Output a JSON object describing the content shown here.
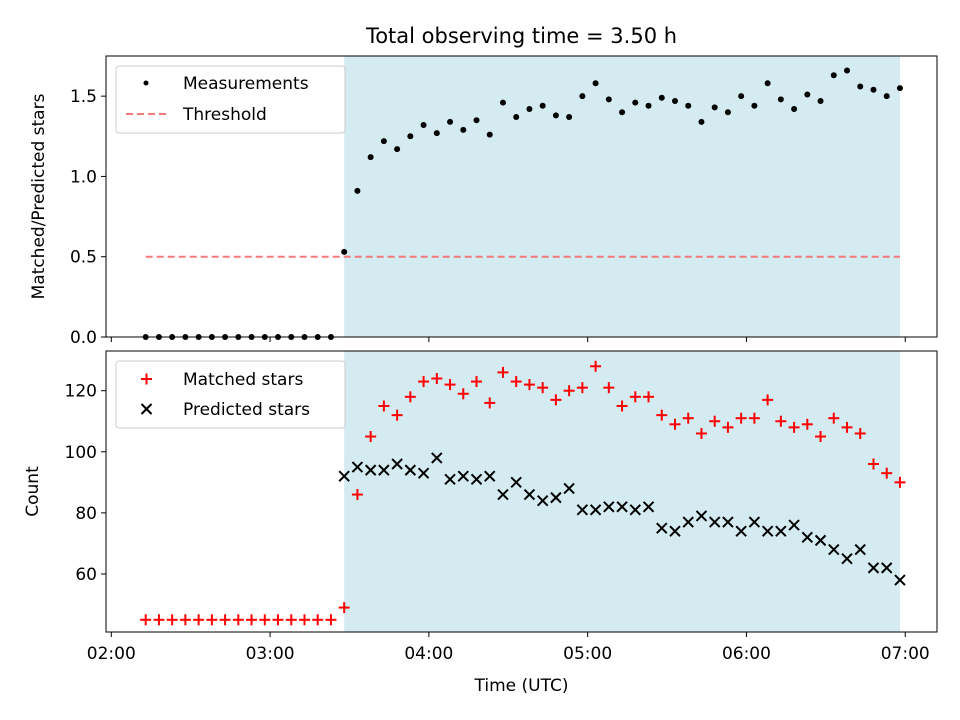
{
  "chart_data": [
    {
      "type": "scatter",
      "title": "Total observing time = 3.50 h",
      "ylabel": "Matched/Predicted stars",
      "xlim": [
        "01:58",
        "07:12"
      ],
      "ylim": [
        0,
        1.75
      ],
      "yticks": [
        0.0,
        0.5,
        1.0,
        1.5
      ],
      "ytick_labels": [
        "0.0",
        "0.5",
        "1.0",
        "1.5"
      ],
      "shaded_region": {
        "x_start": "03:28",
        "x_end": "06:58",
        "color": "#d4ebf1"
      },
      "legend": {
        "position": "top-left",
        "entries": [
          "Measurements",
          "Threshold"
        ]
      },
      "series": [
        {
          "name": "Measurements",
          "marker": "dot",
          "color": "#000000",
          "x": [
            "02:13",
            "02:18",
            "02:23",
            "02:28",
            "02:33",
            "02:38",
            "02:43",
            "02:48",
            "02:53",
            "02:58",
            "03:03",
            "03:08",
            "03:13",
            "03:18",
            "03:23",
            "03:28",
            "03:33",
            "03:38",
            "03:43",
            "03:48",
            "03:53",
            "03:58",
            "04:03",
            "04:08",
            "04:13",
            "04:18",
            "04:23",
            "04:28",
            "04:33",
            "04:38",
            "04:43",
            "04:48",
            "04:53",
            "04:58",
            "05:03",
            "05:08",
            "05:13",
            "05:18",
            "05:23",
            "05:28",
            "05:33",
            "05:38",
            "05:43",
            "05:48",
            "05:53",
            "05:58",
            "06:03",
            "06:08",
            "06:13",
            "06:18",
            "06:23",
            "06:28",
            "06:33",
            "06:38",
            "06:43",
            "06:48",
            "06:53",
            "06:58"
          ],
          "y": [
            0,
            0,
            0,
            0,
            0,
            0,
            0,
            0,
            0,
            0,
            0,
            0,
            0,
            0,
            0,
            0.53,
            0.91,
            1.12,
            1.22,
            1.17,
            1.25,
            1.32,
            1.27,
            1.34,
            1.29,
            1.35,
            1.26,
            1.46,
            1.37,
            1.42,
            1.44,
            1.38,
            1.37,
            1.5,
            1.58,
            1.48,
            1.4,
            1.46,
            1.44,
            1.49,
            1.47,
            1.44,
            1.34,
            1.43,
            1.4,
            1.5,
            1.44,
            1.58,
            1.48,
            1.42,
            1.51,
            1.47,
            1.63,
            1.66,
            1.56,
            1.54,
            1.5,
            1.55
          ]
        },
        {
          "name": "Threshold",
          "style": "dashed-line",
          "color": "#f27a7a",
          "x": [
            "02:13",
            "06:58"
          ],
          "y": [
            0.5,
            0.5
          ]
        }
      ]
    },
    {
      "type": "scatter",
      "xlabel": "Time (UTC)",
      "ylabel": "Count",
      "xlim": [
        "01:58",
        "07:12"
      ],
      "ylim": [
        41,
        133
      ],
      "yticks": [
        60,
        80,
        100,
        120
      ],
      "xticks": [
        "02:00",
        "03:00",
        "04:00",
        "05:00",
        "06:00",
        "07:00"
      ],
      "shaded_region": {
        "x_start": "03:28",
        "x_end": "06:58",
        "color": "#d4ebf1"
      },
      "legend": {
        "position": "top-left",
        "entries": [
          "Matched stars",
          "Predicted stars"
        ]
      },
      "series": [
        {
          "name": "Matched stars",
          "marker": "plus",
          "color": "#ff0000",
          "x": [
            "02:13",
            "02:18",
            "02:23",
            "02:28",
            "02:33",
            "02:38",
            "02:43",
            "02:48",
            "02:53",
            "02:58",
            "03:03",
            "03:08",
            "03:13",
            "03:18",
            "03:23",
            "03:28",
            "03:33",
            "03:38",
            "03:43",
            "03:48",
            "03:53",
            "03:58",
            "04:03",
            "04:08",
            "04:13",
            "04:18",
            "04:23",
            "04:28",
            "04:33",
            "04:38",
            "04:43",
            "04:48",
            "04:53",
            "04:58",
            "05:03",
            "05:08",
            "05:13",
            "05:18",
            "05:23",
            "05:28",
            "05:33",
            "05:38",
            "05:43",
            "05:48",
            "05:53",
            "05:58",
            "06:03",
            "06:08",
            "06:13",
            "06:18",
            "06:23",
            "06:28",
            "06:33",
            "06:38",
            "06:43",
            "06:48",
            "06:53",
            "06:58"
          ],
          "y": [
            45,
            45,
            45,
            45,
            45,
            45,
            45,
            45,
            45,
            45,
            45,
            45,
            45,
            45,
            45,
            49,
            86,
            105,
            115,
            112,
            118,
            123,
            124,
            122,
            119,
            123,
            116,
            126,
            123,
            122,
            121,
            117,
            120,
            121,
            128,
            121,
            115,
            118,
            118,
            112,
            109,
            111,
            106,
            110,
            108,
            111,
            111,
            117,
            110,
            108,
            109,
            105,
            111,
            108,
            106,
            96,
            93,
            90
          ]
        },
        {
          "name": "Predicted stars",
          "marker": "x",
          "color": "#000000",
          "x": [
            "03:28",
            "03:33",
            "03:38",
            "03:43",
            "03:48",
            "03:53",
            "03:58",
            "04:03",
            "04:08",
            "04:13",
            "04:18",
            "04:23",
            "04:28",
            "04:33",
            "04:38",
            "04:43",
            "04:48",
            "04:53",
            "04:58",
            "05:03",
            "05:08",
            "05:13",
            "05:18",
            "05:23",
            "05:28",
            "05:33",
            "05:38",
            "05:43",
            "05:48",
            "05:53",
            "05:58",
            "06:03",
            "06:08",
            "06:13",
            "06:18",
            "06:23",
            "06:28",
            "06:33",
            "06:38",
            "06:43",
            "06:48",
            "06:53",
            "06:58"
          ],
          "y": [
            92,
            95,
            94,
            94,
            96,
            94,
            93,
            98,
            91,
            92,
            91,
            92,
            86,
            90,
            86,
            84,
            85,
            88,
            81,
            81,
            82,
            82,
            81,
            82,
            75,
            74,
            77,
            79,
            77,
            77,
            74,
            77,
            74,
            74,
            76,
            72,
            71,
            68,
            65,
            68,
            62,
            62,
            58
          ]
        }
      ]
    }
  ]
}
